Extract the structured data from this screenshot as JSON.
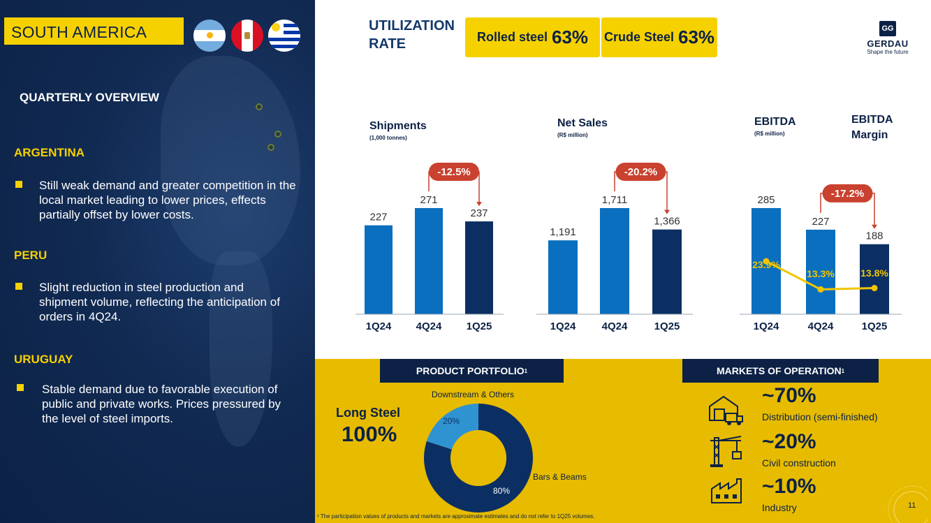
{
  "region": "SOUTH AMERICA",
  "flags": [
    {
      "name": "argentina-flag",
      "colors": [
        "#74acdf",
        "#ffffff",
        "#74acdf"
      ]
    },
    {
      "name": "peru-flag",
      "colors": [
        "#d91023",
        "#ffffff",
        "#d91023"
      ]
    },
    {
      "name": "uruguay-flag",
      "colors": [
        "#0038a8",
        "#ffffff"
      ]
    }
  ],
  "overview_title": "QUARTERLY OVERVIEW",
  "countries": [
    {
      "name": "ARGENTINA",
      "text": "Still weak demand and greater competition in the local market leading to lower prices, effects partially offset by lower costs."
    },
    {
      "name": "PERU",
      "text": "Slight reduction in steel production and shipment volume, reflecting the anticipation of orders in 4Q24."
    },
    {
      "name": "URUGUAY",
      "text": "Stable demand due to favorable execution of public and private works. Prices pressured by the level of steel imports."
    }
  ],
  "utilization": {
    "title": "UTILIZATION RATE",
    "rolled_label": "Rolled steel",
    "rolled_value": "63%",
    "crude_label": "Crude Steel",
    "crude_value": "63%"
  },
  "logo": {
    "name": "GERDAU",
    "tagline": "Shape the future"
  },
  "chart_data": [
    {
      "type": "bar",
      "title": "Shipments",
      "subtitle": "(1,000 tonnes)",
      "categories": [
        "1Q24",
        "4Q24",
        "1Q25"
      ],
      "values": [
        227,
        271,
        237
      ],
      "value_labels": [
        "227",
        "271",
        "237"
      ],
      "variation": "-12.5%",
      "colors": [
        "#0a6fbe",
        "#0a6fbe",
        "#0c2f63"
      ]
    },
    {
      "type": "bar",
      "title": "Net Sales",
      "subtitle": "(R$ million)",
      "categories": [
        "1Q24",
        "4Q24",
        "1Q25"
      ],
      "values": [
        1191,
        1711,
        1366
      ],
      "value_labels": [
        "1,191",
        "1,711",
        "1,366"
      ],
      "variation": "-20.2%",
      "colors": [
        "#0a6fbe",
        "#0a6fbe",
        "#0c2f63"
      ]
    },
    {
      "type": "bar",
      "title": "EBITDA",
      "subtitle": "(R$ million)",
      "secondary_title": "EBITDA Margin",
      "categories": [
        "1Q24",
        "4Q24",
        "1Q25"
      ],
      "values": [
        285,
        227,
        188
      ],
      "value_labels": [
        "285",
        "227",
        "188"
      ],
      "variation": "-17.2%",
      "margin_values": [
        23.9,
        13.3,
        13.8
      ],
      "margin_labels": [
        "23.9%",
        "13.3%",
        "13.8%"
      ],
      "colors": [
        "#0a6fbe",
        "#0a6fbe",
        "#0c2f63"
      ]
    }
  ],
  "portfolio": {
    "header": "PRODUCT PORTFOLIO",
    "header_sup": "1",
    "long_label": "Long Steel",
    "long_value": "100%",
    "donut": [
      {
        "name": "Bars & Beams",
        "value": 80,
        "label": "80%",
        "color": "#0c2f63"
      },
      {
        "name": "Downstream & Others",
        "value": 20,
        "label": "20%",
        "color": "#2f93d1"
      }
    ]
  },
  "markets": {
    "header": "MARKETS OF OPERATION",
    "header_sup": "1",
    "items": [
      {
        "value": "~70%",
        "label": "Distribution (semi-finished)",
        "icon": "warehouse-truck-icon"
      },
      {
        "value": "~20%",
        "label": "Civil construction",
        "icon": "crane-icon"
      },
      {
        "value": "~10%",
        "label": "Industry",
        "icon": "factory-icon"
      }
    ]
  },
  "footnote": "¹ The participation values of products and markets are approximate estimates and do not refer to 1Q25 volumes.",
  "page_number": "11"
}
